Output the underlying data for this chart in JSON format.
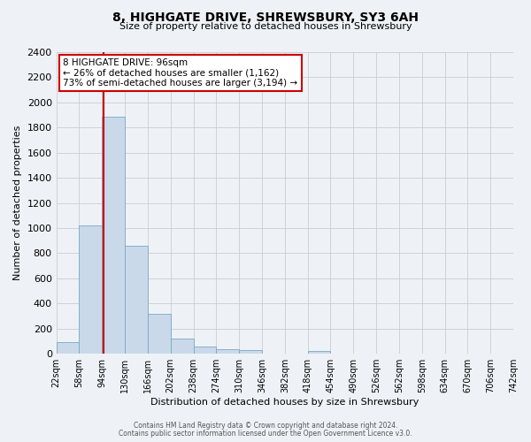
{
  "title": "8, HIGHGATE DRIVE, SHREWSBURY, SY3 6AH",
  "subtitle": "Size of property relative to detached houses in Shrewsbury",
  "xlabel": "Distribution of detached houses by size in Shrewsbury",
  "ylabel": "Number of detached properties",
  "footer_line1": "Contains HM Land Registry data © Crown copyright and database right 2024.",
  "footer_line2": "Contains public sector information licensed under the Open Government Licence v3.0.",
  "bin_edges": [
    22,
    58,
    94,
    130,
    166,
    202,
    238,
    274,
    310,
    346,
    382,
    418,
    454,
    490,
    526,
    562,
    598,
    634,
    670,
    706,
    742
  ],
  "bin_labels": [
    "22sqm",
    "58sqm",
    "94sqm",
    "130sqm",
    "166sqm",
    "202sqm",
    "238sqm",
    "274sqm",
    "310sqm",
    "346sqm",
    "382sqm",
    "418sqm",
    "454sqm",
    "490sqm",
    "526sqm",
    "562sqm",
    "598sqm",
    "634sqm",
    "670sqm",
    "706sqm",
    "742sqm"
  ],
  "bar_heights": [
    90,
    1020,
    1890,
    860,
    320,
    120,
    55,
    40,
    30,
    0,
    0,
    25,
    0,
    0,
    0,
    0,
    0,
    0,
    0,
    0
  ],
  "bar_color": "#c9d9e9",
  "bar_edge_color": "#7aa8c8",
  "property_line_x": 96,
  "ylim": [
    0,
    2400
  ],
  "yticks": [
    0,
    200,
    400,
    600,
    800,
    1000,
    1200,
    1400,
    1600,
    1800,
    2000,
    2200,
    2400
  ],
  "annotation_title": "8 HIGHGATE DRIVE: 96sqm",
  "annotation_line1": "← 26% of detached houses are smaller (1,162)",
  "annotation_line2": "73% of semi-detached houses are larger (3,194) →",
  "annotation_box_color": "#ffffff",
  "annotation_box_edge": "#cc0000",
  "vline_color": "#cc0000",
  "bg_color": "#eef2f7",
  "grid_color": "#cccccc"
}
